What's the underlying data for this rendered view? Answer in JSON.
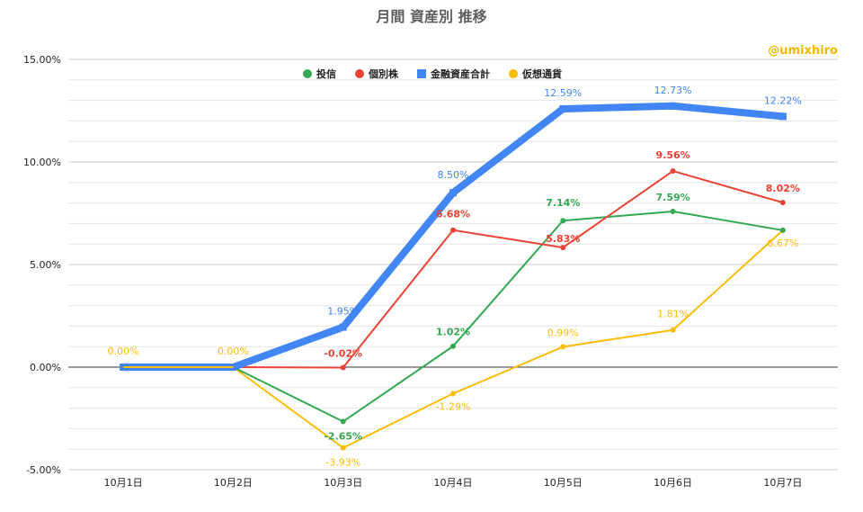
{
  "chart_data": {
    "type": "line",
    "title": "月間  資産別 推移",
    "watermark": "@umixhiro",
    "categories": [
      "10月1日",
      "10月2日",
      "10月3日",
      "10月4日",
      "10月5日",
      "10月6日",
      "10月7日"
    ],
    "ylim": [
      -5,
      15
    ],
    "yticks": [
      -5,
      0,
      5,
      10,
      15
    ],
    "ytick_labels": [
      "-5.00%",
      "0.00%",
      "5.00%",
      "10.00%",
      "15.00%"
    ],
    "grid": true,
    "legend_position": "top-center",
    "series": [
      {
        "name": "投信",
        "color": "#34a853",
        "marker": "circle",
        "values": [
          0.0,
          0.0,
          -2.65,
          1.02,
          7.14,
          7.59,
          6.67
        ],
        "labels": [
          "",
          "",
          "-2.65%",
          "1.02%",
          "7.14%",
          "7.59%",
          ""
        ]
      },
      {
        "name": "個別株",
        "color": "#ea4335",
        "marker": "circle",
        "values": [
          0.0,
          0.0,
          -0.02,
          6.68,
          5.83,
          9.56,
          8.02
        ],
        "labels": [
          "",
          "",
          "-0.02%",
          "6.68%",
          "5.83%",
          "9.56%",
          "8.02%"
        ]
      },
      {
        "name": "金融資産合計",
        "color": "#4285f4",
        "marker": "square",
        "values": [
          0.0,
          0.0,
          1.95,
          8.5,
          12.59,
          12.73,
          12.22
        ],
        "labels": [
          "",
          "",
          "1.95%",
          "8.50%",
          "12.59%",
          "12.73%",
          "12.22%"
        ]
      },
      {
        "name": "仮想通貨",
        "color": "#fbbc04",
        "marker": "circle",
        "values": [
          0.0,
          0.0,
          -3.93,
          -1.29,
          0.99,
          1.81,
          6.67
        ],
        "labels": [
          "0.00%",
          "0.00%",
          "-3.93%",
          "-1.29%",
          "0.99%",
          "1.81%",
          "6.67%"
        ]
      }
    ]
  }
}
